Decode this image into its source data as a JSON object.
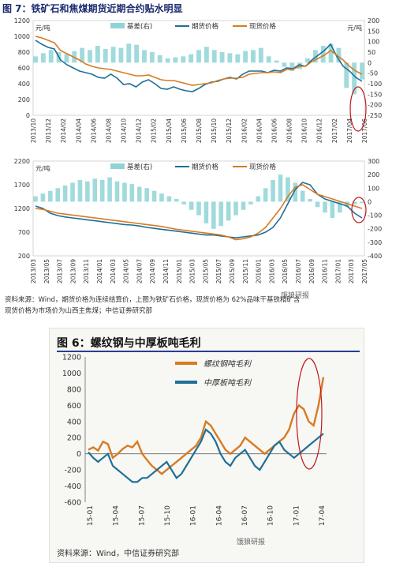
{
  "figure1": {
    "title": "图 7：铁矿石和焦煤期货近期合约贴水明显",
    "source_note_line1": "资料来源：Wind，期货价格为连续结算价，上图为铁矿石价格，现货价格为 62%品味干基铁精矿含",
    "source_note_line2": "现货价格为市场价为山西主焦煤；中信证券研究部"
  },
  "figure2": {
    "title": "图 6：螺纹钢与中厚板吨毛利",
    "source_note": "资料来源：Wind，中信证券研究部"
  },
  "watermark": {
    "text": "饿狼研报"
  },
  "colors": {
    "futures": "#1f6f97",
    "spot": "#d77b22",
    "basis": "#8fd3d6",
    "annotation": "#c0181e"
  },
  "chart_data": [
    {
      "type": "line",
      "left_unit": "元/吨",
      "right_unit": "元/吨",
      "left_ticks": [
        0,
        200,
        400,
        600,
        800,
        1000,
        1200
      ],
      "right_ticks": [
        -250,
        -200,
        -150,
        -100,
        -50,
        0,
        50,
        100,
        150,
        200
      ],
      "ylim_left": [
        0,
        1200
      ],
      "ylim_right": [
        -250,
        200
      ],
      "x_ticks": [
        "2013/10",
        "2013/12",
        "2014/02",
        "2014/04",
        "2014/06",
        "2014/08",
        "2014/10",
        "2014/12",
        "2015/02",
        "2015/04",
        "2015/06",
        "2015/08",
        "2015/10",
        "2015/12",
        "2016/02",
        "2016/04",
        "2016/06",
        "2016/08",
        "2016/10",
        "2016/12",
        "2017/02",
        "2017/04",
        "2017/06"
      ],
      "series": [
        {
          "name": "基差(右)",
          "kind": "bar",
          "axis": "right",
          "values": [
            30,
            45,
            60,
            50,
            40,
            55,
            70,
            60,
            80,
            65,
            75,
            70,
            90,
            85,
            60,
            50,
            35,
            20,
            25,
            30,
            40,
            60,
            75,
            60,
            50,
            45,
            40,
            55,
            60,
            70,
            30,
            10,
            -20,
            -40,
            -30,
            20,
            60,
            80,
            90,
            70,
            -120,
            -150,
            -80
          ]
        },
        {
          "name": "期货价格",
          "kind": "line",
          "axis": "left",
          "values": [
            950,
            900,
            860,
            840,
            700,
            640,
            600,
            560,
            540,
            520,
            480,
            470,
            520,
            470,
            390,
            400,
            360,
            420,
            450,
            400,
            340,
            330,
            360,
            330,
            310,
            300,
            340,
            390,
            420,
            430,
            460,
            480,
            460,
            520,
            560,
            560,
            560,
            540,
            570,
            560,
            600,
            590,
            640,
            620,
            700,
            760,
            820,
            900,
            740,
            620,
            560,
            480,
            430
          ]
        },
        {
          "name": "现货价格",
          "kind": "line",
          "axis": "left",
          "values": [
            1000,
            980,
            950,
            920,
            820,
            780,
            740,
            700,
            650,
            620,
            600,
            590,
            580,
            560,
            540,
            520,
            500,
            500,
            510,
            480,
            450,
            440,
            440,
            420,
            400,
            380,
            390,
            400,
            410,
            440,
            460,
            470,
            470,
            480,
            520,
            530,
            540,
            540,
            550,
            540,
            580,
            580,
            620,
            620,
            680,
            720,
            760,
            820,
            760,
            700,
            620,
            560,
            520
          ]
        }
      ]
    },
    {
      "type": "line",
      "left_unit": "元/吨",
      "left_ticks": [
        200,
        700,
        1200,
        1700,
        2200
      ],
      "right_ticks": [
        -400,
        -300,
        -200,
        -100,
        0,
        100,
        200,
        300
      ],
      "ylim_left": [
        200,
        2200
      ],
      "ylim_right": [
        -400,
        300
      ],
      "x_ticks": [
        "2013/03",
        "2013/05",
        "2013/07",
        "2013/09",
        "2013/11",
        "2014/01",
        "2014/03",
        "2014/05",
        "2014/07",
        "2014/09",
        "2014/11",
        "2015/01",
        "2015/03",
        "2015/05",
        "2015/07",
        "2015/09",
        "2015/11",
        "2016/01",
        "2016/03",
        "2016/05",
        "2016/07",
        "2016/09",
        "2016/11",
        "2017/01",
        "2017/03",
        "2017/05"
      ],
      "series": [
        {
          "name": "基差(右)",
          "kind": "bar",
          "axis": "right",
          "values": [
            40,
            60,
            80,
            100,
            120,
            140,
            160,
            150,
            170,
            160,
            180,
            150,
            140,
            130,
            110,
            100,
            80,
            60,
            40,
            20,
            -20,
            -60,
            -100,
            -160,
            -200,
            -180,
            -140,
            -100,
            -60,
            -20,
            40,
            100,
            160,
            200,
            180,
            140,
            80,
            20,
            -40,
            -80,
            -120,
            -80,
            -40,
            -20,
            -10
          ]
        },
        {
          "name": "期货价格",
          "kind": "line",
          "axis": "left",
          "values": [
            1250,
            1200,
            1100,
            1050,
            1020,
            1000,
            980,
            960,
            940,
            920,
            900,
            880,
            860,
            850,
            830,
            800,
            780,
            760,
            740,
            720,
            700,
            680,
            660,
            640,
            640,
            620,
            600,
            580,
            600,
            620,
            640,
            700,
            800,
            1000,
            1300,
            1600,
            1750,
            1700,
            1500,
            1400,
            1350,
            1300,
            1250,
            1100,
            1000
          ]
        },
        {
          "name": "现货价格",
          "kind": "line",
          "axis": "left",
          "values": [
            1200,
            1180,
            1140,
            1100,
            1080,
            1060,
            1040,
            1020,
            1000,
            980,
            960,
            940,
            920,
            900,
            880,
            860,
            840,
            820,
            790,
            760,
            740,
            720,
            700,
            680,
            660,
            640,
            600,
            540,
            560,
            600,
            680,
            800,
            1000,
            1200,
            1450,
            1650,
            1700,
            1600,
            1500,
            1450,
            1400,
            1350,
            1300,
            1250,
            1200
          ]
        }
      ]
    },
    {
      "type": "line",
      "left_ticks": [
        -600,
        -400,
        -200,
        0,
        200,
        400,
        600,
        800,
        1000,
        1200
      ],
      "ylim": [
        -600,
        1200
      ],
      "x_ticks": [
        "15-01",
        "15-04",
        "15-07",
        "15-10",
        "16-01",
        "16-04",
        "16-07",
        "16-10",
        "17-01",
        "17-04"
      ],
      "series": [
        {
          "name": "螺纹钢吨毛利",
          "kind": "line",
          "values": [
            50,
            80,
            40,
            150,
            120,
            -50,
            0,
            60,
            100,
            80,
            150,
            0,
            -80,
            -150,
            -200,
            -250,
            -200,
            -150,
            -100,
            -50,
            0,
            50,
            100,
            200,
            400,
            350,
            250,
            150,
            50,
            0,
            50,
            100,
            200,
            150,
            100,
            50,
            0,
            50,
            100,
            150,
            200,
            300,
            500,
            600,
            550,
            400,
            350,
            600,
            950
          ]
        },
        {
          "name": "中厚板吨毛利",
          "kind": "line",
          "values": [
            20,
            -50,
            -100,
            -50,
            0,
            -150,
            -200,
            -250,
            -300,
            -350,
            -350,
            -300,
            -300,
            -250,
            -200,
            -150,
            -100,
            -200,
            -300,
            -250,
            -150,
            -50,
            50,
            150,
            300,
            250,
            150,
            0,
            -100,
            -150,
            -50,
            0,
            50,
            -50,
            -150,
            -200,
            -100,
            0,
            100,
            150,
            50,
            0,
            -50,
            0,
            50,
            100,
            150,
            200,
            250
          ]
        }
      ]
    }
  ]
}
